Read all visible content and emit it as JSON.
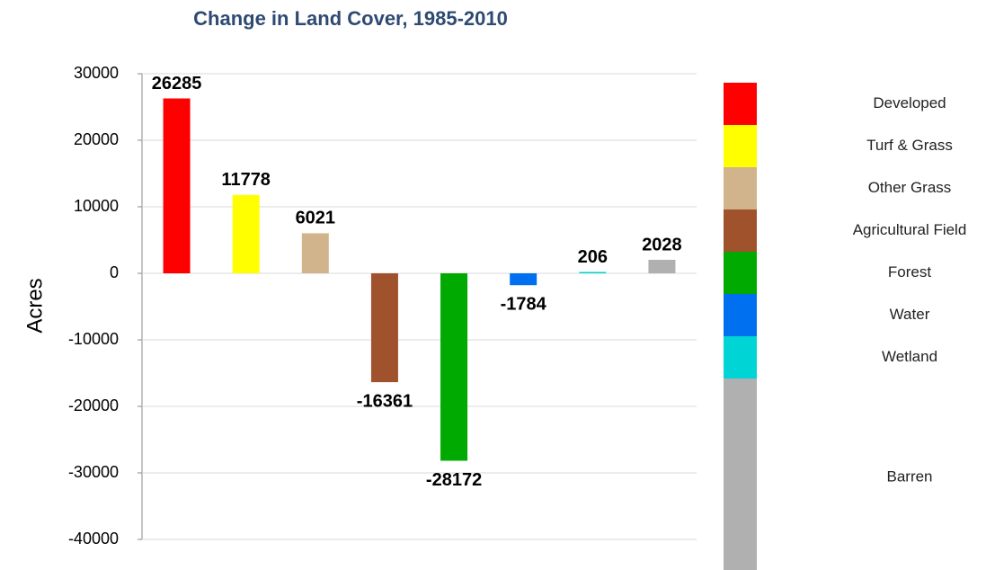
{
  "chart_data": {
    "type": "bar",
    "title": "Change in Land Cover, 1985-2010",
    "y_label": "Acres",
    "categories": [
      "Developed",
      "Turf & Grass",
      "Other Grass",
      "Agricultural Field",
      "Forest",
      "Water",
      "Wetland",
      "Barren"
    ],
    "values": [
      26285,
      11778,
      6021,
      -16361,
      -28172,
      -1784,
      206,
      2028
    ],
    "colors": [
      "#ff0000",
      "#ffff00",
      "#d2b48c",
      "#a0522d",
      "#00aa00",
      "#0070f0",
      "#00d4d4",
      "#b0b0b0"
    ],
    "ylim": [
      -40000,
      30000
    ],
    "yticks": [
      -40000,
      -30000,
      -20000,
      -10000,
      0,
      10000,
      20000,
      30000
    ],
    "grid": true
  }
}
